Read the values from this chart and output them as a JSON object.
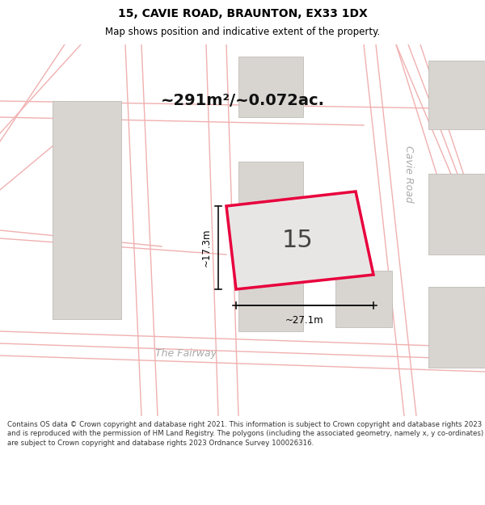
{
  "title_line1": "15, CAVIE ROAD, BRAUNTON, EX33 1DX",
  "title_line2": "Map shows position and indicative extent of the property.",
  "area_text": "~291m²/~0.072ac.",
  "plot_number": "15",
  "dim_width": "~27.1m",
  "dim_height": "~17.3m",
  "road_name_right": "Cavie Road",
  "road_name_bottom": "The Fairway",
  "footer_text": "Contains OS data © Crown copyright and database right 2021. This information is subject to Crown copyright and database rights 2023 and is reproduced with the permission of HM Land Registry. The polygons (including the associated geometry, namely x, y co-ordinates) are subject to Crown copyright and database rights 2023 Ordnance Survey 100026316.",
  "map_bg": "#f7f5f3",
  "plot_fill": "#e8e6e4",
  "plot_edge_color": "#e8003d",
  "road_line_color": "#f0b0b0",
  "building_color": "#d8d5d0",
  "building_edge": "#b8b5b0",
  "road_fill_color": "#ffffff",
  "title_color": "#000000",
  "footer_color": "#333333",
  "road_text_color": "#aaaaaa",
  "arrow_color": "#111111",
  "area_text_color": "#111111"
}
